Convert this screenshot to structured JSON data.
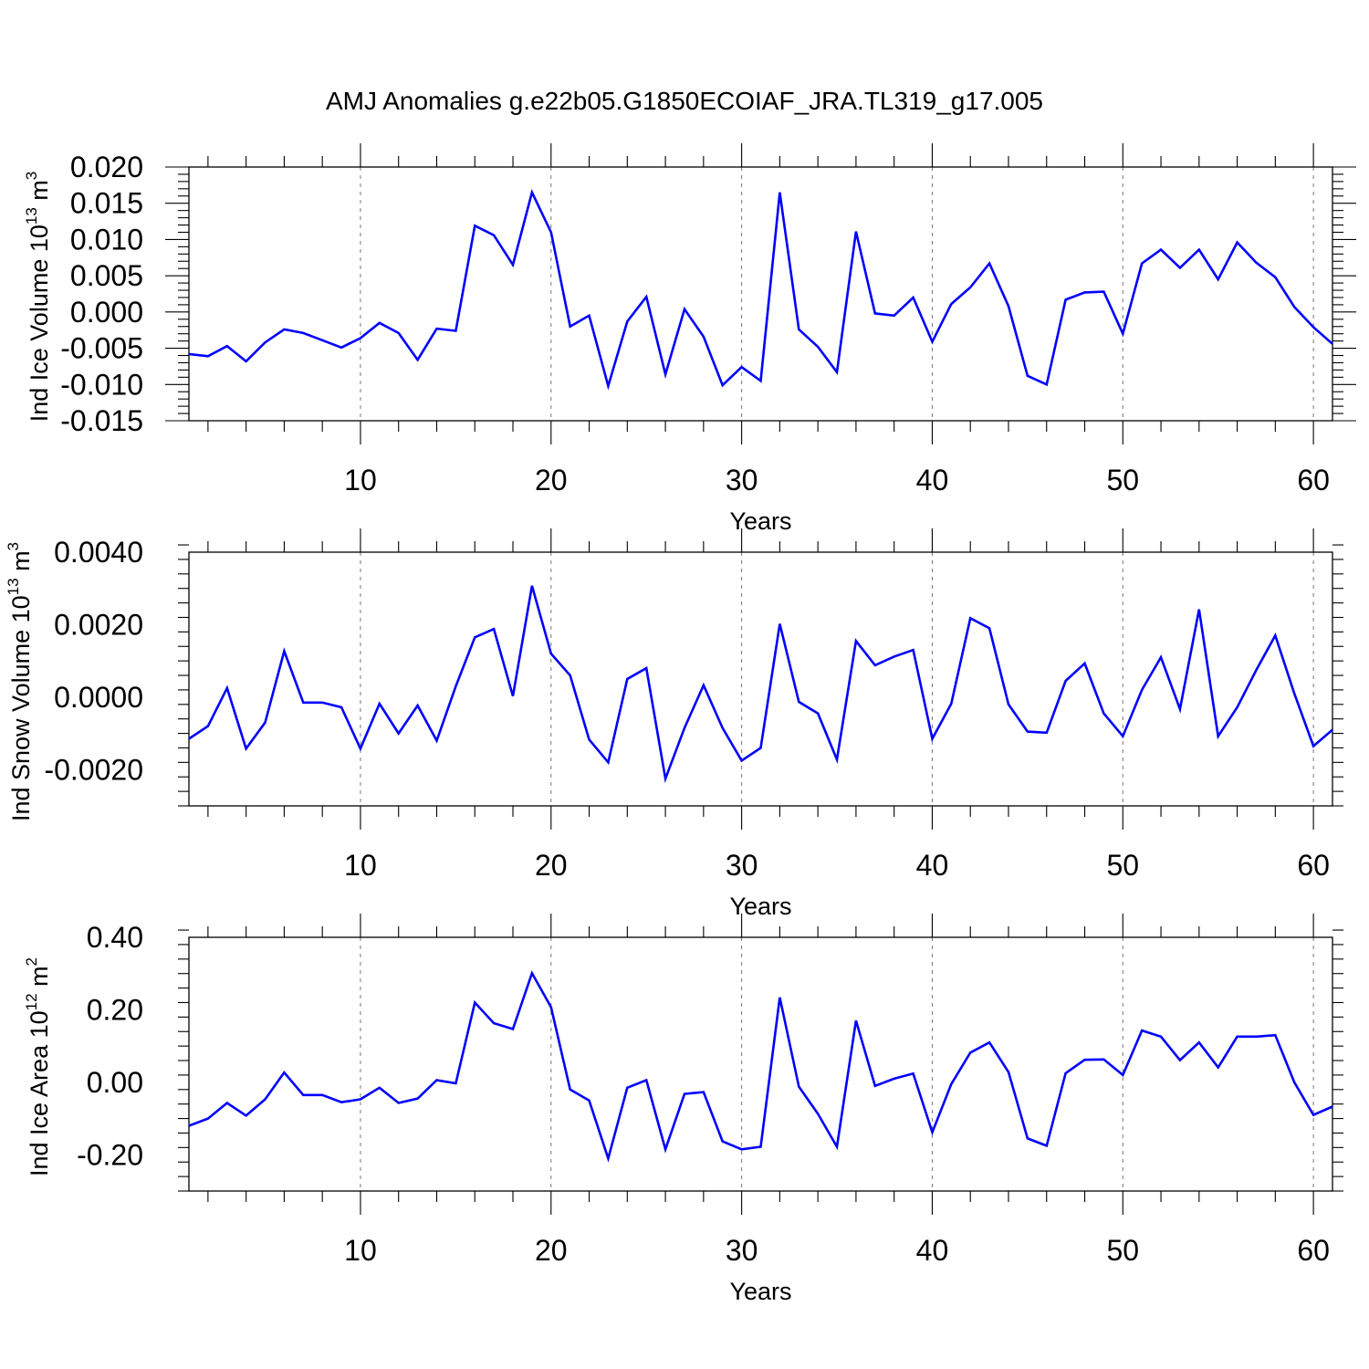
{
  "title": "AMJ Anomalies g.e22b05.G1850ECOIAF_JRA.TL319_g17.005",
  "line_color": "#0000ff",
  "chart_data": [
    {
      "type": "line",
      "name": "ice-volume",
      "ylabel": {
        "main": "Ind Ice Volume 10",
        "exp": "13",
        "unit": " m",
        "unit_exp": "3"
      },
      "xlabel": "Years",
      "xlim": [
        1,
        61
      ],
      "ylim": [
        -0.015,
        0.02
      ],
      "yticks": [
        -0.015,
        -0.01,
        -0.005,
        0.0,
        0.005,
        0.01,
        0.015,
        0.02
      ],
      "ytick_labels": [
        "-0.015",
        "-0.010",
        "-0.005",
        "0.000",
        "0.005",
        "0.010",
        "0.015",
        "0.020"
      ],
      "xticks": [
        10,
        20,
        30,
        40,
        50,
        60
      ],
      "xtick_labels": [
        "10",
        "20",
        "30",
        "40",
        "50",
        "60"
      ],
      "x": [
        1,
        2,
        3,
        4,
        5,
        6,
        7,
        8,
        9,
        10,
        11,
        12,
        13,
        14,
        15,
        16,
        17,
        18,
        19,
        20,
        21,
        22,
        23,
        24,
        25,
        26,
        27,
        28,
        29,
        30,
        31,
        32,
        33,
        34,
        35,
        36,
        37,
        38,
        39,
        40,
        41,
        42,
        43,
        44,
        45,
        46,
        47,
        48,
        49,
        50,
        51,
        52,
        53,
        54,
        55,
        56,
        57,
        58,
        59,
        60,
        61
      ],
      "values": [
        -0.0058,
        -0.0061,
        -0.0047,
        -0.0068,
        -0.0042,
        -0.0024,
        -0.0029,
        -0.0039,
        -0.0049,
        -0.0036,
        -0.0015,
        -0.0029,
        -0.0066,
        -0.0023,
        -0.0026,
        0.0119,
        0.0106,
        0.0065,
        0.0165,
        0.011,
        -0.002,
        -0.0005,
        -0.0102,
        -0.0013,
        0.0021,
        -0.0086,
        0.0004,
        -0.0034,
        -0.0101,
        -0.0076,
        -0.0095,
        0.0165,
        -0.0024,
        -0.0048,
        -0.0083,
        0.0111,
        -0.0002,
        -0.0005,
        0.002,
        -0.0041,
        0.0011,
        0.0034,
        0.0067,
        0.0008,
        -0.0088,
        -0.01,
        0.0017,
        0.0027,
        0.0028,
        -0.003,
        0.0067,
        0.0086,
        0.0061,
        0.0086,
        0.0045,
        0.0096,
        0.0068,
        0.0048,
        0.0007,
        -0.0021,
        -0.0044
      ]
    },
    {
      "type": "line",
      "name": "snow-volume",
      "ylabel": {
        "main": "Ind Snow Volume 10",
        "exp": "13",
        "unit": " m",
        "unit_exp": "3"
      },
      "xlabel": "Years",
      "xlim": [
        1,
        61
      ],
      "ylim": [
        -0.003,
        0.004
      ],
      "yticks": [
        -0.002,
        0.0,
        0.002,
        0.004
      ],
      "ytick_labels": [
        "-0.0020",
        "0.0000",
        "0.0020",
        "0.0040"
      ],
      "xticks": [
        10,
        20,
        30,
        40,
        50,
        60
      ],
      "xtick_labels": [
        "10",
        "20",
        "30",
        "40",
        "50",
        "60"
      ],
      "x": [
        1,
        2,
        3,
        4,
        5,
        6,
        7,
        8,
        9,
        10,
        11,
        12,
        13,
        14,
        15,
        16,
        17,
        18,
        19,
        20,
        21,
        22,
        23,
        24,
        25,
        26,
        27,
        28,
        29,
        30,
        31,
        32,
        33,
        34,
        35,
        36,
        37,
        38,
        39,
        40,
        41,
        42,
        43,
        44,
        45,
        46,
        47,
        48,
        49,
        50,
        51,
        52,
        53,
        54,
        55,
        56,
        57,
        58,
        59,
        60,
        61
      ],
      "values": [
        -0.00115,
        -0.0008,
        0.00025,
        -0.00142,
        -0.0007,
        0.00127,
        -0.00015,
        -0.00015,
        -0.00028,
        -0.00142,
        -0.00018,
        -0.001,
        -0.00023,
        -0.0012,
        0.0003,
        0.00165,
        0.00188,
        3e-05,
        0.00307,
        0.0012,
        0.0006,
        -0.00117,
        -0.0018,
        0.0005,
        0.0008,
        -0.00225,
        -0.00085,
        0.00033,
        -0.00085,
        -0.00175,
        -0.0014,
        0.00202,
        -0.00013,
        -0.00045,
        -0.00172,
        0.00155,
        0.00088,
        0.00112,
        0.0013,
        -0.00115,
        -0.00018,
        0.00218,
        0.0019,
        -0.0002,
        -0.00095,
        -0.00098,
        0.00045,
        0.00093,
        -0.00045,
        -0.00108,
        0.0002,
        0.0011,
        -0.00033,
        0.00242,
        -0.00108,
        -0.00028,
        0.00075,
        0.0017,
        0.0001,
        -0.00135,
        -0.0009
      ]
    },
    {
      "type": "line",
      "name": "ice-area",
      "ylabel": {
        "main": "Ind Ice Area 10",
        "exp": "12",
        "unit": " m",
        "unit_exp": "2"
      },
      "xlabel": "Years",
      "xlim": [
        1,
        61
      ],
      "ylim": [
        -0.3,
        0.4
      ],
      "yticks": [
        -0.2,
        0.0,
        0.2,
        0.4
      ],
      "ytick_labels": [
        "-0.20",
        "0.00",
        "0.20",
        "0.40"
      ],
      "xticks": [
        10,
        20,
        30,
        40,
        50,
        60
      ],
      "xtick_labels": [
        "10",
        "20",
        "30",
        "40",
        "50",
        "60"
      ],
      "x": [
        1,
        2,
        3,
        4,
        5,
        6,
        7,
        8,
        9,
        10,
        11,
        12,
        13,
        14,
        15,
        16,
        17,
        18,
        19,
        20,
        21,
        22,
        23,
        24,
        25,
        26,
        27,
        28,
        29,
        30,
        31,
        32,
        33,
        34,
        35,
        36,
        37,
        38,
        39,
        40,
        41,
        42,
        43,
        44,
        45,
        46,
        47,
        48,
        49,
        50,
        51,
        52,
        53,
        54,
        55,
        56,
        57,
        58,
        59,
        60,
        61
      ],
      "values": [
        -0.12,
        -0.1,
        -0.057,
        -0.092,
        -0.047,
        0.027,
        -0.035,
        -0.035,
        -0.055,
        -0.047,
        -0.015,
        -0.057,
        -0.045,
        0.006,
        -0.003,
        0.22,
        0.163,
        0.147,
        0.301,
        0.207,
        -0.02,
        -0.05,
        -0.21,
        -0.015,
        0.006,
        -0.185,
        -0.032,
        -0.027,
        -0.163,
        -0.185,
        -0.178,
        0.234,
        -0.012,
        -0.087,
        -0.178,
        0.17,
        -0.01,
        0.01,
        0.024,
        -0.138,
        -0.005,
        0.082,
        0.11,
        0.028,
        -0.155,
        -0.175,
        0.025,
        0.062,
        0.063,
        0.02,
        0.143,
        0.126,
        0.061,
        0.11,
        0.041,
        0.126,
        0.126,
        0.13,
        0.0,
        -0.09,
        -0.067
      ]
    }
  ]
}
